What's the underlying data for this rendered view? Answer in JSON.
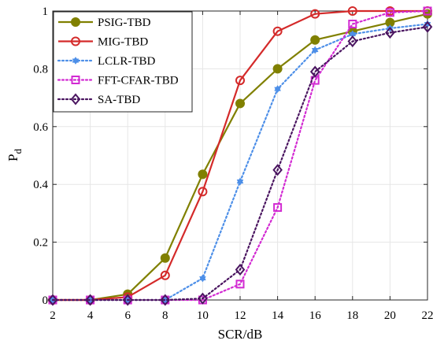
{
  "chart_data": {
    "type": "line",
    "xlabel": "SCR/dB",
    "ylabel": "P",
    "ylabel_subscript": "d",
    "xlim": [
      2,
      22
    ],
    "ylim": [
      0,
      1
    ],
    "x_ticks": [
      "2",
      "4",
      "6",
      "8",
      "10",
      "12",
      "14",
      "16",
      "18",
      "20",
      "22"
    ],
    "y_ticks": [
      "0",
      "0.2",
      "0.4",
      "0.6",
      "0.8",
      "1"
    ],
    "grid": true,
    "legend_position": "top-left",
    "x": [
      2,
      4,
      6,
      8,
      10,
      12,
      14,
      16,
      18,
      20,
      22
    ],
    "series": [
      {
        "name": "PSIG-TBD",
        "color": "#808000",
        "line": "solid",
        "marker": "filled-circle",
        "values": [
          0,
          0,
          0.02,
          0.145,
          0.435,
          0.68,
          0.8,
          0.9,
          0.93,
          0.96,
          0.99
        ]
      },
      {
        "name": "MIG-TBD",
        "color": "#d42a2a",
        "line": "solid",
        "marker": "open-circle",
        "values": [
          0,
          0,
          0.01,
          0.085,
          0.375,
          0.76,
          0.93,
          0.99,
          1.0,
          1.0,
          1.0
        ]
      },
      {
        "name": "LCLR-TBD",
        "color": "#4d8fe8",
        "line": "dotted",
        "marker": "star",
        "values": [
          0,
          0,
          0,
          0,
          0.075,
          0.41,
          0.73,
          0.865,
          0.92,
          0.94,
          0.955
        ]
      },
      {
        "name": "FFT-CFAR-TBD",
        "color": "#d22ad2",
        "line": "dotted",
        "marker": "open-square",
        "values": [
          0,
          0,
          0,
          0,
          0,
          0.055,
          0.32,
          0.76,
          0.955,
          0.995,
          1.0
        ]
      },
      {
        "name": "SA-TBD",
        "color": "#4a1560",
        "line": "dotted",
        "marker": "open-diamond",
        "values": [
          0,
          0,
          0,
          0,
          0.005,
          0.105,
          0.45,
          0.79,
          0.895,
          0.925,
          0.945
        ]
      }
    ]
  }
}
